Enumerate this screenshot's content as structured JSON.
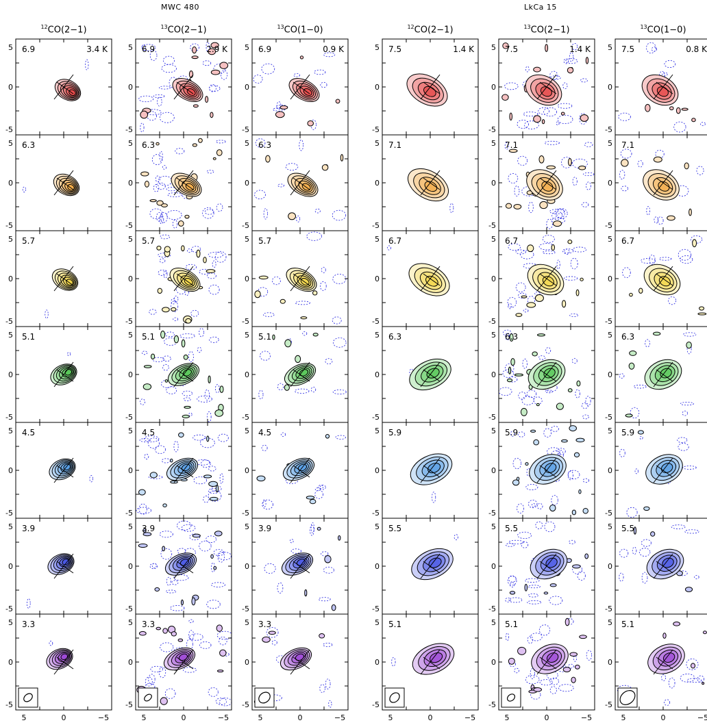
{
  "sources": [
    {
      "name": "MWC 480",
      "lines": [
        {
          "label_sup": "12",
          "label": "CO(2−1)",
          "peak": "3.4 K",
          "beam": {
            "w": 14,
            "h": 10,
            "rot": -40
          }
        },
        {
          "label_sup": "13",
          "label": "CO(2−1)",
          "peak": "2.9 K",
          "beam": {
            "w": 12,
            "h": 8,
            "rot": -40
          }
        },
        {
          "label_sup": "13",
          "label": "CO(1−0)",
          "peak": "0.9 K",
          "beam": {
            "w": 18,
            "h": 14,
            "rot": -40
          }
        }
      ],
      "velocities": [
        "6.9",
        "6.3",
        "5.7",
        "5.1",
        "4.5",
        "3.9",
        "3.3"
      ]
    },
    {
      "name": "LkCa 15",
      "lines": [
        {
          "label_sup": "12",
          "label": "CO(2−1)",
          "peak": "1.4 K",
          "beam": {
            "w": 16,
            "h": 12,
            "rot": -45
          }
        },
        {
          "label_sup": "13",
          "label": "CO(2−1)",
          "peak": "1.4 K",
          "beam": {
            "w": 12,
            "h": 9,
            "rot": -40
          }
        },
        {
          "label_sup": "13",
          "label": "CO(1−0)",
          "peak": "0.8 K",
          "beam": {
            "w": 24,
            "h": 18,
            "rot": -40
          }
        }
      ],
      "velocities": [
        "7.5",
        "7.1",
        "6.7",
        "6.3",
        "5.9",
        "5.5",
        "5.1"
      ]
    }
  ],
  "axis_ticks": {
    "y": [
      "5",
      "0",
      "-5"
    ],
    "x": [
      "5",
      "0",
      "−5"
    ]
  },
  "channel_colors": [
    "#e23030",
    "#f0a030",
    "#f0d030",
    "#40c040",
    "#4090e0",
    "#3040e0",
    "#9030d0"
  ],
  "contours": {
    "negative_color": "#2020e0",
    "positive_color": "#000000"
  }
}
